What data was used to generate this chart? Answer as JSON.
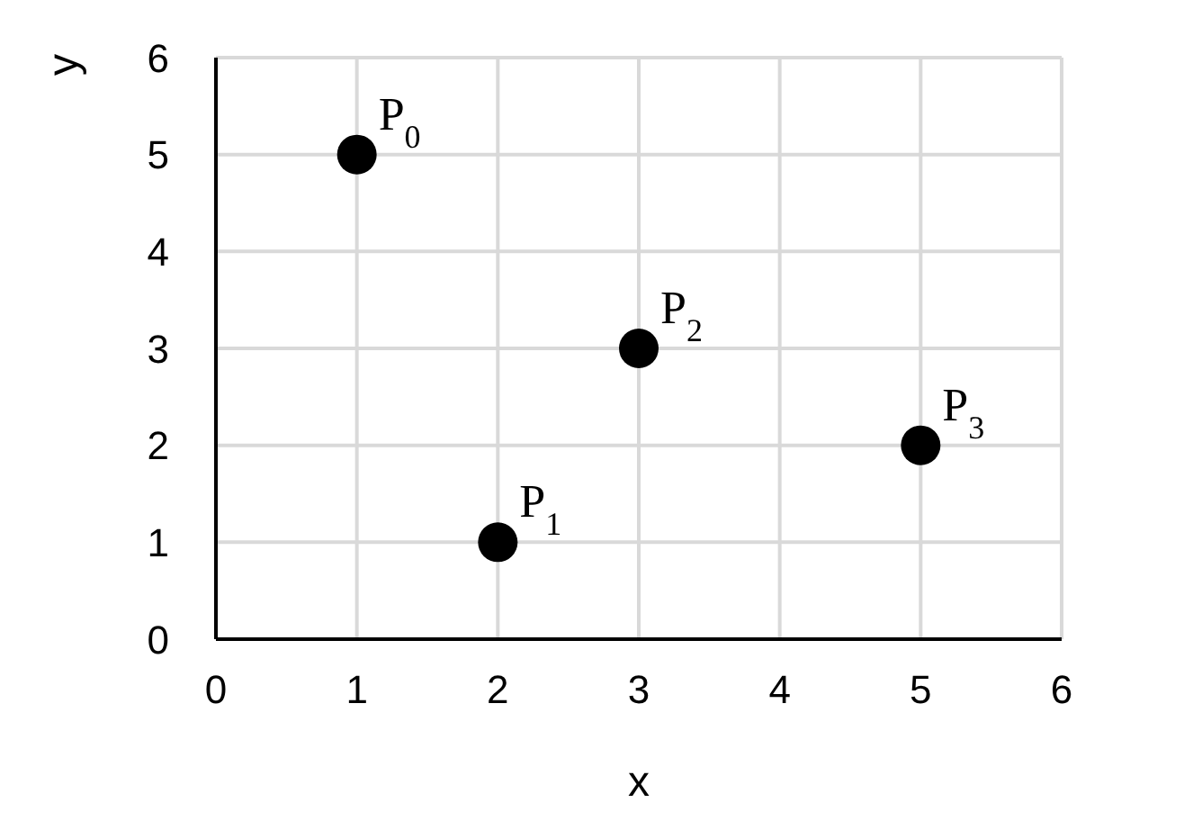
{
  "chart_data": {
    "type": "scatter",
    "xlabel": "x",
    "ylabel": "y",
    "x": [
      1,
      2,
      3,
      5
    ],
    "values": [
      5,
      1,
      3,
      2
    ],
    "color": "#000000",
    "marker": "circle",
    "xlim": [
      0,
      6
    ],
    "xticks": [
      0,
      1,
      2,
      3,
      4,
      5,
      6
    ],
    "ylim": [
      0,
      6
    ],
    "yticks": [
      0,
      1,
      2,
      3,
      4,
      5,
      6
    ],
    "grid": true,
    "legend": false,
    "annotations": [
      {
        "text": "P$_{0}$",
        "x": 1,
        "y": 5
      },
      {
        "text": "P$_{1}$",
        "x": 2,
        "y": 1
      },
      {
        "text": "P$_{2}$",
        "x": 3,
        "y": 3
      },
      {
        "text": "P$_{3}$",
        "x": 5,
        "y": 2
      }
    ]
  }
}
